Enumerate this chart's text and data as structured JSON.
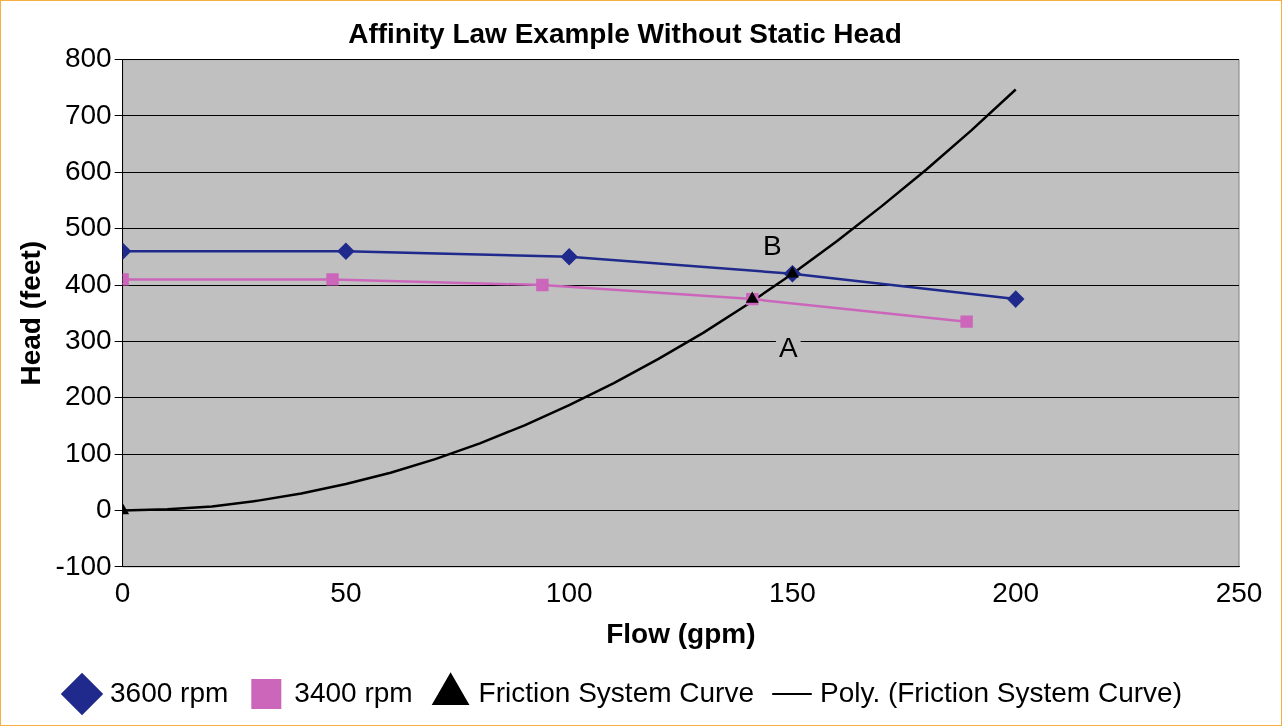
{
  "chart_data": {
    "type": "line",
    "title": "Affinity Law Example Without Static Head",
    "xlabel": "Flow (gpm)",
    "ylabel": "Head (feet)",
    "xlim": [
      0,
      250
    ],
    "xticks": [
      0,
      50,
      100,
      150,
      200,
      250
    ],
    "ylim": [
      -100,
      800
    ],
    "yticks": [
      -100,
      0,
      100,
      200,
      300,
      400,
      500,
      600,
      700,
      800
    ],
    "grid": "y",
    "legend": "bottom",
    "series": [
      {
        "name": "3600 rpm",
        "type": "line",
        "marker": "diamond",
        "color": "#1f2a8c",
        "x": [
          0,
          50,
          100,
          150,
          200
        ],
        "values": [
          460,
          460,
          450,
          420,
          375
        ]
      },
      {
        "name": "3400 rpm",
        "type": "line",
        "marker": "square",
        "color": "#cc66bb",
        "x": [
          0,
          47,
          94,
          141,
          189
        ],
        "values": [
          410,
          410,
          400,
          375,
          335
        ]
      },
      {
        "name": "Friction System Curve",
        "type": "scatter",
        "marker": "triangle",
        "color": "#000000",
        "x": [
          0,
          141,
          150
        ],
        "values": [
          0,
          375,
          420
        ]
      },
      {
        "name": "Poly. (Friction System Curve)",
        "type": "line",
        "marker": "none",
        "color": "#000000",
        "x": [
          0,
          10,
          20,
          30,
          40,
          50,
          60,
          70,
          80,
          90,
          100,
          110,
          120,
          130,
          140,
          150,
          160,
          170,
          180,
          190,
          200
        ],
        "values": [
          0,
          2,
          7,
          17,
          30,
          47,
          67,
          91,
          119,
          151,
          187,
          226,
          269,
          315,
          366,
          420,
          478,
          540,
          605,
          674,
          747
        ]
      }
    ],
    "annotations": [
      {
        "text": "B",
        "x": 150,
        "y": 420
      },
      {
        "text": "A",
        "x": 141,
        "y": 375
      }
    ]
  }
}
